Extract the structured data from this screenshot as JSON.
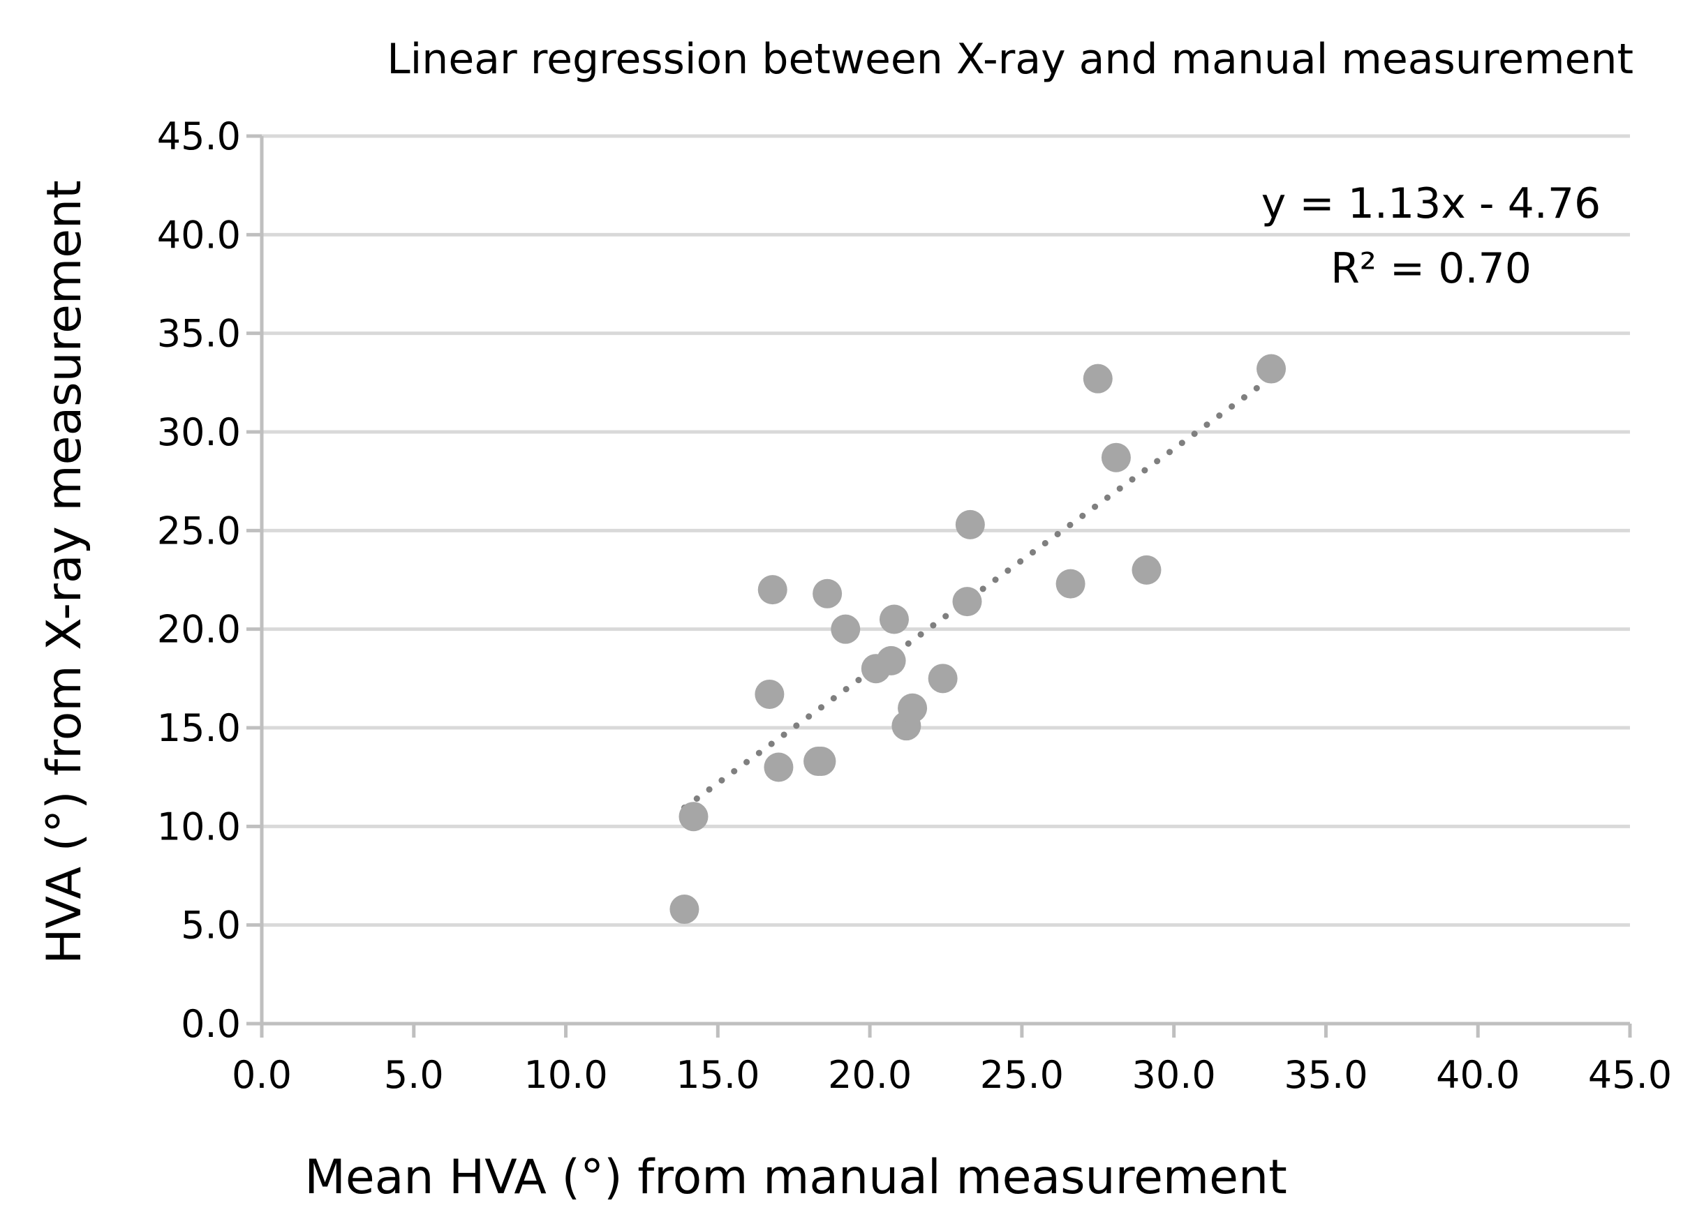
{
  "chart_data": {
    "type": "scatter",
    "title": "Linear regression between X-ray and  manual measurement",
    "xlabel": "Mean HVA (°) from  manual measurement",
    "ylabel": "HVA (°) from X-ray measurement",
    "xlim": [
      0,
      45
    ],
    "ylim": [
      0,
      45
    ],
    "xticks": [
      "0.0",
      "5.0",
      "10.0",
      "15.0",
      "20.0",
      "25.0",
      "30.0",
      "35.0",
      "40.0",
      "45.0"
    ],
    "yticks": [
      "0.0",
      "5.0",
      "10.0",
      "15.0",
      "20.0",
      "25.0",
      "30.0",
      "35.0",
      "40.0",
      "45.0"
    ],
    "grid": "horizontal",
    "series": [
      {
        "name": "HVA",
        "x": [
          13.9,
          14.2,
          16.7,
          16.8,
          17.0,
          18.3,
          18.4,
          18.6,
          19.2,
          20.2,
          20.7,
          20.8,
          21.2,
          21.4,
          22.4,
          23.2,
          23.3,
          26.6,
          27.5,
          28.1,
          29.1,
          33.2
        ],
        "y": [
          5.8,
          10.5,
          16.7,
          22.0,
          13.0,
          13.3,
          13.3,
          21.8,
          20.0,
          18.0,
          18.4,
          20.5,
          15.1,
          16.0,
          17.5,
          21.4,
          25.3,
          22.3,
          32.7,
          28.7,
          23.0,
          33.2
        ]
      }
    ],
    "trendline": {
      "type": "linear",
      "slope": 1.13,
      "intercept": -4.76,
      "x_range": [
        13.9,
        33.2
      ],
      "equation": "y = 1.13x - 4.76",
      "r_squared": "R² = 0.70"
    }
  }
}
